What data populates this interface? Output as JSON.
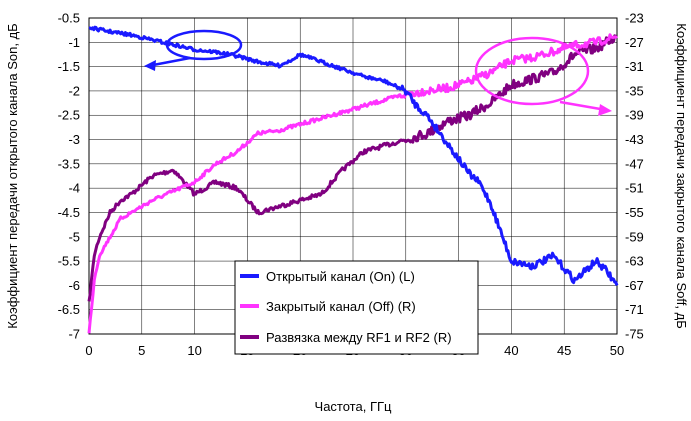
{
  "chart_data": {
    "type": "line",
    "xlabel": "Частота, ГГц",
    "ylabel_left": "Коэффициент передачи открытого канала Son, дБ",
    "ylabel_right": "Коэффициент передачи закрытого канала Soff, дБ",
    "xlim": [
      0,
      50
    ],
    "ylim_left": [
      -7,
      -0.5
    ],
    "ylim_right": [
      -75,
      -23
    ],
    "x_ticks": [
      "0",
      "5",
      "10",
      "15",
      "20",
      "25",
      "30",
      "35",
      "40",
      "45",
      "50"
    ],
    "y_left_ticks": [
      "-0.5",
      "-1",
      "-1.5",
      "-2",
      "-2.5",
      "-3",
      "-3.5",
      "-4",
      "-4.5",
      "-5",
      "-5.5",
      "-6",
      "-6.5",
      "-7"
    ],
    "y_right_ticks": [
      "-23",
      "-27",
      "-31",
      "-35",
      "-39",
      "-43",
      "-47",
      "-51",
      "-55",
      "-59",
      "-63",
      "-67",
      "-71",
      "-75"
    ],
    "grid": true,
    "legend_position": "bottom-center",
    "series": [
      {
        "name": "Открытый канал (On) (L)",
        "axis": "left",
        "color": "#1a1aff",
        "x": [
          0,
          2,
          4,
          6,
          8,
          10,
          12,
          14,
          16,
          18,
          19,
          20,
          22,
          24,
          26,
          28,
          30,
          31,
          32,
          33,
          34,
          35,
          36,
          37,
          38,
          40,
          42,
          44,
          46,
          48,
          49,
          50
        ],
        "values": [
          -0.7,
          -0.78,
          -0.85,
          -0.95,
          -1.05,
          -1.15,
          -1.2,
          -1.28,
          -1.4,
          -1.48,
          -1.38,
          -1.25,
          -1.4,
          -1.55,
          -1.7,
          -1.8,
          -2.0,
          -2.3,
          -2.5,
          -2.8,
          -3.1,
          -3.4,
          -3.7,
          -3.9,
          -4.3,
          -5.5,
          -5.6,
          -5.4,
          -5.9,
          -5.5,
          -5.7,
          -6.0
        ]
      },
      {
        "name": "Закрытый канал (Off) (R)",
        "axis": "right",
        "color": "#ff33ff",
        "x": [
          0,
          0.5,
          1,
          2,
          3,
          4,
          6,
          8,
          10,
          12,
          14,
          16,
          18,
          20,
          22,
          24,
          26,
          28,
          30,
          32,
          34,
          36,
          38,
          40,
          42,
          44,
          46,
          48,
          50
        ],
        "values": [
          -75,
          -66,
          -62,
          -59,
          -56,
          -55,
          -53,
          -51.5,
          -50,
          -47,
          -45,
          -42,
          -41.5,
          -40.5,
          -39.5,
          -38.5,
          -37.5,
          -36.5,
          -35.5,
          -35,
          -34.5,
          -33.5,
          -32,
          -30,
          -29.5,
          -28.5,
          -27.5,
          -27,
          -26
        ]
      },
      {
        "name": "Развязка между RF1 и RF2 (R)",
        "axis": "right",
        "color": "#800080",
        "x": [
          0,
          0.5,
          1,
          2,
          3,
          4,
          6,
          8,
          10,
          12,
          14,
          16,
          18,
          20,
          22,
          24,
          26,
          28,
          30,
          32,
          34,
          36,
          38,
          40,
          42,
          44,
          46,
          48,
          50
        ],
        "values": [
          -70,
          -62,
          -59,
          -55,
          -53,
          -52,
          -49,
          -48,
          -52,
          -50,
          -51,
          -55,
          -54,
          -53,
          -52,
          -48,
          -45,
          -44,
          -43,
          -42,
          -40,
          -39,
          -37,
          -34,
          -33,
          -32,
          -29,
          -28,
          -26
        ]
      }
    ]
  }
}
